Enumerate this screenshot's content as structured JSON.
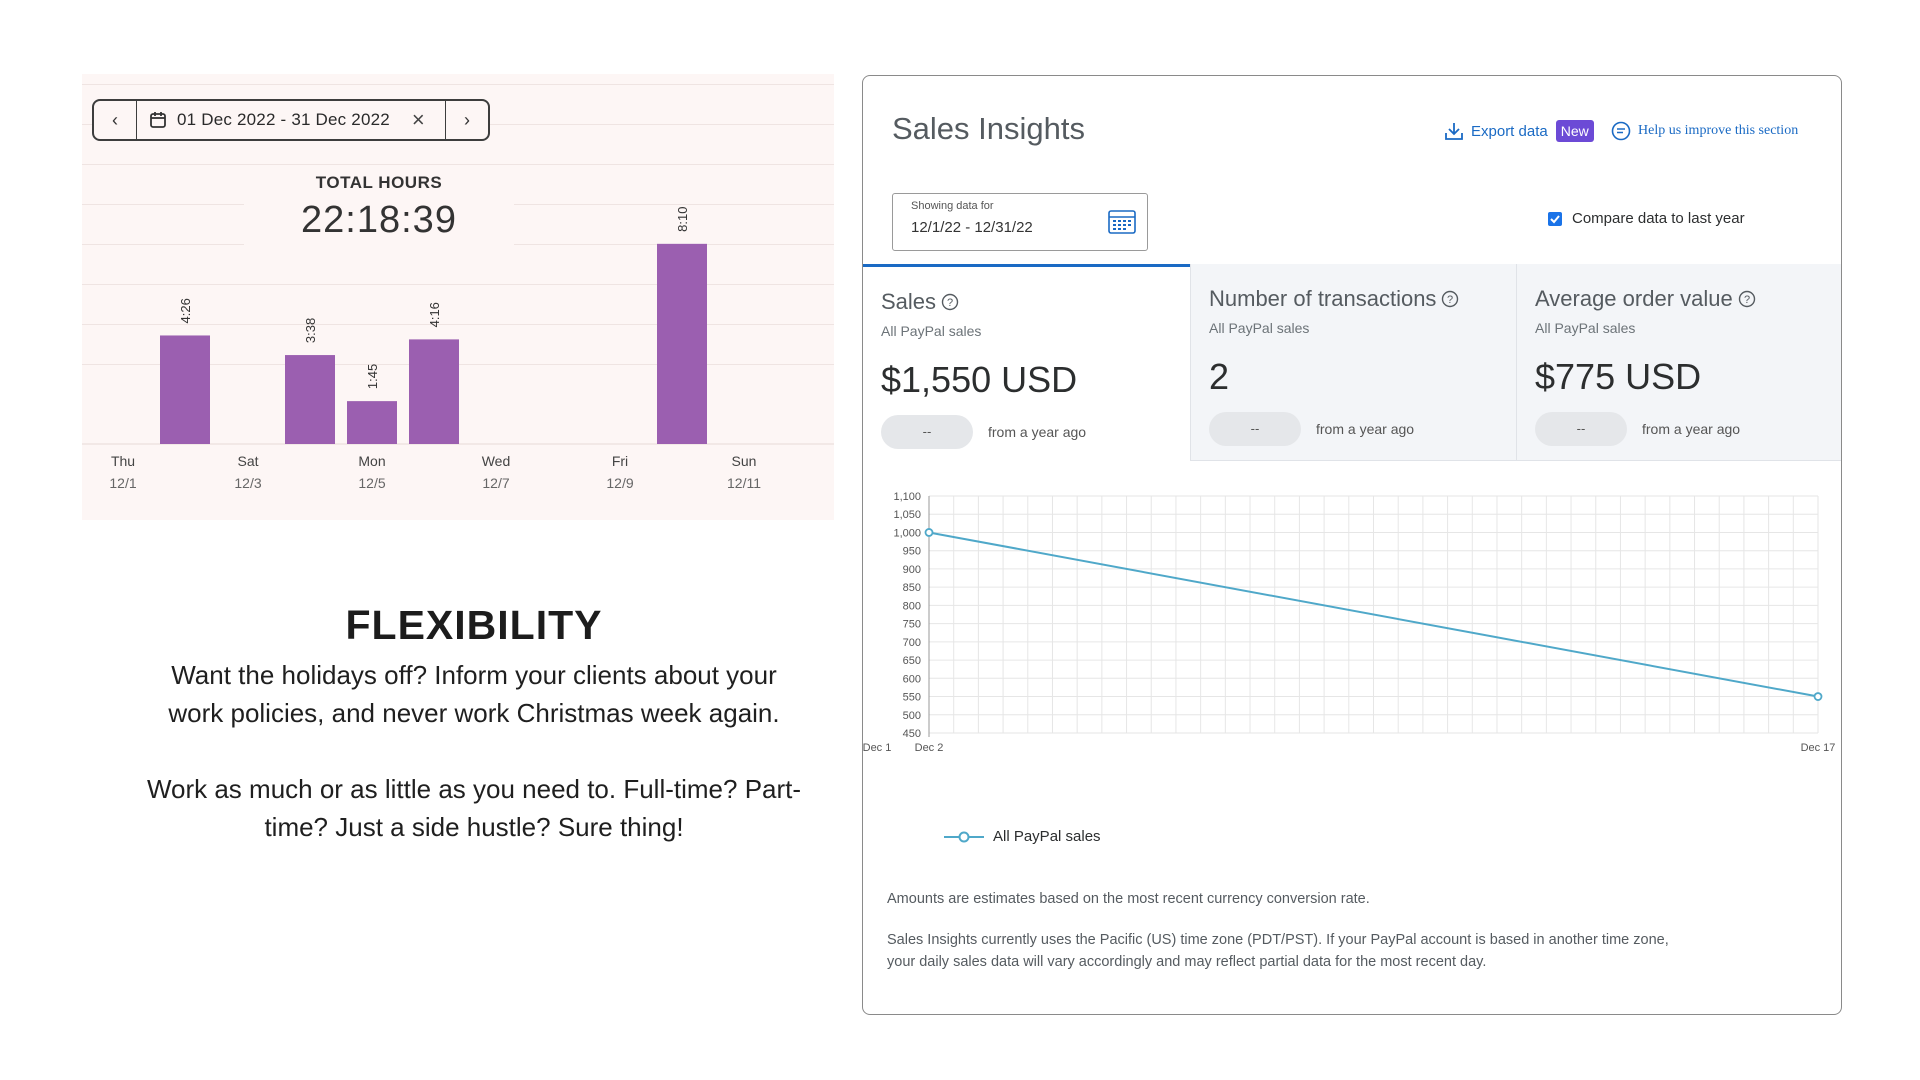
{
  "tracker": {
    "date_range": "01 Dec 2022 - 31 Dec 2022",
    "total_label": "TOTAL HOURS",
    "total_value": "22:18:39",
    "bar_color": "#9b5fb0",
    "bars": [
      {
        "label": "4:26",
        "hours": 4.43
      },
      {
        "label": "3:38",
        "hours": 3.63
      },
      {
        "label": "1:45",
        "hours": 1.75
      },
      {
        "label": "4:16",
        "hours": 4.27
      },
      {
        "label": "8:10",
        "hours": 8.17
      }
    ],
    "days": [
      {
        "day": "Thu",
        "date": "12/1"
      },
      {
        "day": "Sat",
        "date": "12/3"
      },
      {
        "day": "Mon",
        "date": "12/5"
      },
      {
        "day": "Wed",
        "date": "12/7"
      },
      {
        "day": "Fri",
        "date": "12/9"
      },
      {
        "day": "Sun",
        "date": "12/11"
      }
    ]
  },
  "flexibility": {
    "title": "FLEXIBILITY",
    "para1_line1": "Want the holidays off? Inform your clients about your",
    "para1_line2": "work policies, and never work Christmas week again.",
    "para2_line1": "Work as much or as little as you need to. Full-time? Part-",
    "para2_line2": "time? Just a side hustle? Sure thing!"
  },
  "insights": {
    "title": "Sales Insights",
    "export_label": "Export data",
    "new_badge": "New",
    "help_label": "Help us improve this section",
    "date_field_label": "Showing data for",
    "date_field_value": "12/1/22 - 12/31/22",
    "compare_label": "Compare data to last year",
    "compare_checked": true,
    "accent_color": "#1a6ac4",
    "metrics": [
      {
        "title": "Sales",
        "sub": "All PayPal sales",
        "value": "$1,550 USD",
        "pill": "--",
        "ago": "from a year ago"
      },
      {
        "title": "Number of transactions",
        "sub": "All PayPal sales",
        "value": "2",
        "pill": "--",
        "ago": "from a year ago"
      },
      {
        "title": "Average order value",
        "sub": "All PayPal sales",
        "value": "$775 USD",
        "pill": "--",
        "ago": "from a year ago"
      }
    ],
    "note1": "Amounts are estimates based on the most recent currency conversion rate.",
    "note2_line1": "Sales Insights currently uses the Pacific (US) time zone (PDT/PST). If your PayPal account is based in another time zone,",
    "note2_line2": "your daily sales data will vary accordingly and may reflect partial data for the most recent day."
  },
  "chart_data": {
    "type": "line",
    "x": [
      "Dec 2",
      "Dec 17"
    ],
    "x_tick_labels": [
      "Dec 1",
      "Dec 2",
      "Dec 17"
    ],
    "series": [
      {
        "name": "All PayPal sales",
        "values": [
          1000,
          550
        ],
        "color": "#4fa8c9"
      }
    ],
    "ylim": [
      450,
      1100
    ],
    "y_ticks": [
      "450",
      "500",
      "550",
      "600",
      "650",
      "700",
      "750",
      "800",
      "850",
      "900",
      "950",
      "1,000",
      "1,050",
      "1,100"
    ],
    "grid": true,
    "legend": "bottom-left"
  }
}
